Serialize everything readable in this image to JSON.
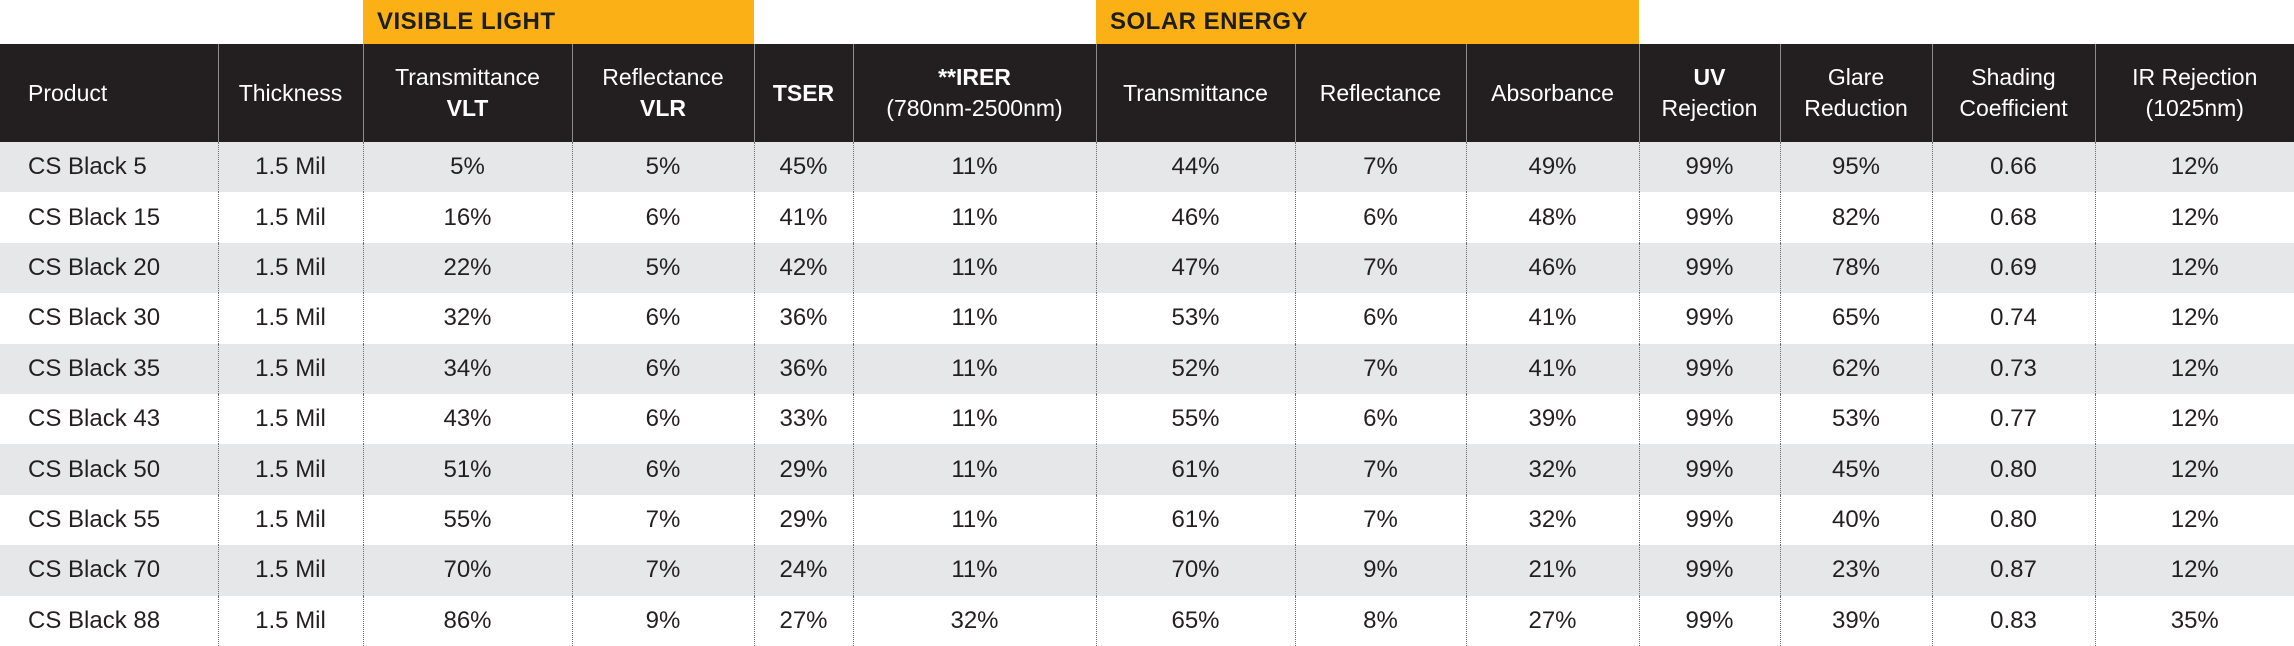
{
  "groups": {
    "visible_light": "VISIBLE LIGHT",
    "solar_energy": "SOLAR ENERGY"
  },
  "colors": {
    "group_bar": "#fbb116",
    "header_bg": "#231f20",
    "stripe_bg": "#e6e7e8"
  },
  "headers": {
    "product": "Product",
    "thickness": "Thickness",
    "vl_transmittance": "Transmittance",
    "vl_transmittance_abbr": "VLT",
    "vl_reflectance": "Reflectance",
    "vl_reflectance_abbr": "VLR",
    "tser": "TSER",
    "irer": "**IRER",
    "irer_range": "(780nm-2500nm)",
    "se_transmittance": "Transmittance",
    "se_reflectance": "Reflectance",
    "se_absorbance": "Absorbance",
    "uv_top": "UV",
    "uv_bottom": "Rejection",
    "glare_top": "Glare",
    "glare_bottom": "Reduction",
    "shading_top": "Shading",
    "shading_bottom": "Coefficient",
    "ir_top": "IR Rejection",
    "ir_bottom": "(1025nm)"
  },
  "rows": [
    [
      "CS Black 5",
      "1.5 Mil",
      "5%",
      "5%",
      "45%",
      "11%",
      "44%",
      "7%",
      "49%",
      "99%",
      "95%",
      "0.66",
      "12%"
    ],
    [
      "CS Black 15",
      "1.5 Mil",
      "16%",
      "6%",
      "41%",
      "11%",
      "46%",
      "6%",
      "48%",
      "99%",
      "82%",
      "0.68",
      "12%"
    ],
    [
      "CS Black 20",
      "1.5 Mil",
      "22%",
      "5%",
      "42%",
      "11%",
      "47%",
      "7%",
      "46%",
      "99%",
      "78%",
      "0.69",
      "12%"
    ],
    [
      "CS Black 30",
      "1.5 Mil",
      "32%",
      "6%",
      "36%",
      "11%",
      "53%",
      "6%",
      "41%",
      "99%",
      "65%",
      "0.74",
      "12%"
    ],
    [
      "CS Black 35",
      "1.5 Mil",
      "34%",
      "6%",
      "36%",
      "11%",
      "52%",
      "7%",
      "41%",
      "99%",
      "62%",
      "0.73",
      "12%"
    ],
    [
      "CS Black 43",
      "1.5 Mil",
      "43%",
      "6%",
      "33%",
      "11%",
      "55%",
      "6%",
      "39%",
      "99%",
      "53%",
      "0.77",
      "12%"
    ],
    [
      "CS Black 50",
      "1.5 Mil",
      "51%",
      "6%",
      "29%",
      "11%",
      "61%",
      "7%",
      "32%",
      "99%",
      "45%",
      "0.80",
      "12%"
    ],
    [
      "CS Black 55",
      "1.5 Mil",
      "55%",
      "7%",
      "29%",
      "11%",
      "61%",
      "7%",
      "32%",
      "99%",
      "40%",
      "0.80",
      "12%"
    ],
    [
      "CS Black 70",
      "1.5 Mil",
      "70%",
      "7%",
      "24%",
      "11%",
      "70%",
      "9%",
      "21%",
      "99%",
      "23%",
      "0.87",
      "12%"
    ],
    [
      "CS Black 88",
      "1.5 Mil",
      "86%",
      "9%",
      "27%",
      "32%",
      "65%",
      "8%",
      "27%",
      "99%",
      "39%",
      "0.83",
      "35%"
    ]
  ]
}
